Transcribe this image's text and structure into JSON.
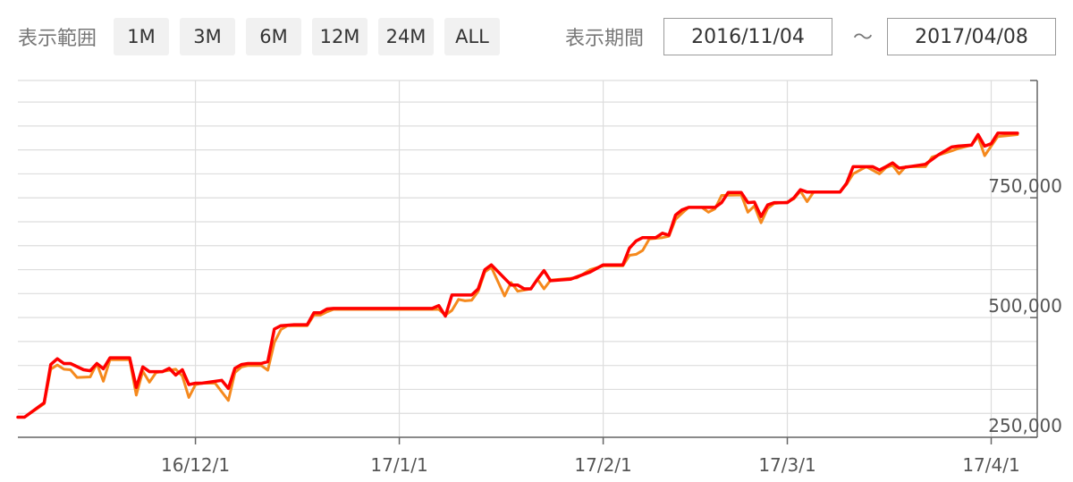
{
  "toolbar": {
    "range_label": "表示範囲",
    "range_buttons": [
      "1M",
      "3M",
      "6M",
      "12M",
      "24M",
      "ALL"
    ],
    "period_label": "表示期間",
    "start_date": "2016/11/04",
    "tilde": "〜",
    "end_date": "2017/04/08"
  },
  "colors": {
    "series_1": "#ff0000",
    "series_2": "#f5891d",
    "grid": "#dddddd",
    "axis": "#666666"
  },
  "chart_data": {
    "type": "line",
    "y_axis_position": "right",
    "y_ticks": [
      250000,
      500000,
      750000
    ],
    "y_tick_labels": [
      "250,000",
      "500,000",
      "750,000"
    ],
    "ylim": [
      250000,
      995000
    ],
    "x_ticks": [
      "2016-12-01",
      "2017-01-01",
      "2017-02-01",
      "2017-03-01",
      "2017-04-01"
    ],
    "x_tick_labels": [
      "16/12/1",
      "17/1/1",
      "17/2/1",
      "17/3/1",
      "17/4/1"
    ],
    "xlim": [
      "2016-11-04",
      "2017-04-08"
    ],
    "grid": true,
    "series": [
      {
        "values": [
          [
            "2016-11-04",
            292000
          ],
          [
            "2016-11-05",
            292000
          ],
          [
            "2016-11-08",
            322000
          ],
          [
            "2016-11-09",
            402000
          ],
          [
            "2016-11-10",
            414000
          ],
          [
            "2016-11-11",
            404000
          ],
          [
            "2016-11-12",
            404000
          ],
          [
            "2016-11-14",
            391000
          ],
          [
            "2016-11-15",
            389000
          ],
          [
            "2016-11-16",
            404000
          ],
          [
            "2016-11-17",
            393000
          ],
          [
            "2016-11-18",
            416000
          ],
          [
            "2016-11-21",
            416000
          ],
          [
            "2016-11-22",
            354000
          ],
          [
            "2016-11-23",
            397000
          ],
          [
            "2016-11-24",
            387000
          ],
          [
            "2016-11-26",
            387000
          ],
          [
            "2016-11-27",
            394000
          ],
          [
            "2016-11-28",
            380000
          ],
          [
            "2016-11-29",
            391000
          ],
          [
            "2016-11-30",
            360000
          ],
          [
            "2016-12-01",
            363000
          ],
          [
            "2016-12-02",
            363000
          ],
          [
            "2016-12-05",
            369000
          ],
          [
            "2016-12-06",
            352000
          ],
          [
            "2016-12-07",
            394000
          ],
          [
            "2016-12-08",
            402000
          ],
          [
            "2016-12-09",
            404000
          ],
          [
            "2016-12-11",
            404000
          ],
          [
            "2016-12-12",
            408000
          ],
          [
            "2016-12-13",
            476000
          ],
          [
            "2016-12-14",
            483000
          ],
          [
            "2016-12-16",
            485000
          ],
          [
            "2016-12-18",
            485000
          ],
          [
            "2016-12-19",
            510000
          ],
          [
            "2016-12-20",
            510000
          ],
          [
            "2016-12-21",
            518000
          ],
          [
            "2016-12-22",
            519000
          ],
          [
            "2017-01-06",
            519000
          ],
          [
            "2017-01-07",
            525000
          ],
          [
            "2017-01-08",
            503000
          ],
          [
            "2017-01-09",
            547000
          ],
          [
            "2017-01-12",
            547000
          ],
          [
            "2017-01-13",
            560000
          ],
          [
            "2017-01-14",
            600000
          ],
          [
            "2017-01-15",
            610000
          ],
          [
            "2017-01-18",
            568000
          ],
          [
            "2017-01-19",
            568000
          ],
          [
            "2017-01-20",
            560000
          ],
          [
            "2017-01-21",
            560000
          ],
          [
            "2017-01-22",
            580000
          ],
          [
            "2017-01-23",
            598000
          ],
          [
            "2017-01-24",
            577000
          ],
          [
            "2017-01-27",
            580000
          ],
          [
            "2017-01-30",
            595000
          ],
          [
            "2017-02-01",
            610000
          ],
          [
            "2017-02-04",
            610000
          ],
          [
            "2017-02-05",
            645000
          ],
          [
            "2017-02-06",
            660000
          ],
          [
            "2017-02-07",
            667000
          ],
          [
            "2017-02-09",
            667000
          ],
          [
            "2017-02-10",
            676000
          ],
          [
            "2017-02-11",
            672000
          ],
          [
            "2017-02-12",
            714000
          ],
          [
            "2017-02-13",
            725000
          ],
          [
            "2017-02-14",
            730000
          ],
          [
            "2017-02-18",
            730000
          ],
          [
            "2017-02-19",
            740000
          ],
          [
            "2017-02-20",
            761000
          ],
          [
            "2017-02-22",
            761000
          ],
          [
            "2017-02-23",
            740000
          ],
          [
            "2017-02-24",
            741000
          ],
          [
            "2017-02-25",
            711000
          ],
          [
            "2017-02-26",
            735000
          ],
          [
            "2017-02-27",
            740000
          ],
          [
            "2017-03-01",
            740000
          ],
          [
            "2017-03-02",
            750000
          ],
          [
            "2017-03-03",
            767000
          ],
          [
            "2017-03-04",
            762000
          ],
          [
            "2017-03-09",
            762000
          ],
          [
            "2017-03-10",
            780000
          ],
          [
            "2017-03-11",
            815000
          ],
          [
            "2017-03-14",
            815000
          ],
          [
            "2017-03-15",
            808000
          ],
          [
            "2017-03-16",
            815000
          ],
          [
            "2017-03-17",
            823000
          ],
          [
            "2017-03-18",
            812000
          ],
          [
            "2017-03-21",
            818000
          ],
          [
            "2017-03-22",
            820000
          ],
          [
            "2017-03-24",
            840000
          ],
          [
            "2017-03-26",
            856000
          ],
          [
            "2017-03-27",
            858000
          ],
          [
            "2017-03-29",
            860000
          ],
          [
            "2017-03-30",
            882000
          ],
          [
            "2017-03-31",
            858000
          ],
          [
            "2017-04-01",
            863000
          ],
          [
            "2017-04-02",
            885000
          ],
          [
            "2017-04-05",
            885000
          ]
        ]
      },
      {
        "values": [
          [
            "2016-11-04",
            292000
          ],
          [
            "2016-11-05",
            292000
          ],
          [
            "2016-11-08",
            320000
          ],
          [
            "2016-11-09",
            392000
          ],
          [
            "2016-11-10",
            401000
          ],
          [
            "2016-11-11",
            392000
          ],
          [
            "2016-11-12",
            391000
          ],
          [
            "2016-11-13",
            375000
          ],
          [
            "2016-11-15",
            376000
          ],
          [
            "2016-11-16",
            404000
          ],
          [
            "2016-11-17",
            367000
          ],
          [
            "2016-11-18",
            412000
          ],
          [
            "2016-11-21",
            412000
          ],
          [
            "2016-11-22",
            338000
          ],
          [
            "2016-11-23",
            388000
          ],
          [
            "2016-11-24",
            365000
          ],
          [
            "2016-11-25",
            385000
          ],
          [
            "2016-11-28",
            392000
          ],
          [
            "2016-11-29",
            378000
          ],
          [
            "2016-11-30",
            333000
          ],
          [
            "2016-12-01",
            360000
          ],
          [
            "2016-12-02",
            363000
          ],
          [
            "2016-12-04",
            363000
          ],
          [
            "2016-12-06",
            327000
          ],
          [
            "2016-12-07",
            385000
          ],
          [
            "2016-12-08",
            397000
          ],
          [
            "2016-12-09",
            400000
          ],
          [
            "2016-12-11",
            400000
          ],
          [
            "2016-12-12",
            390000
          ],
          [
            "2016-12-13",
            448000
          ],
          [
            "2016-12-14",
            475000
          ],
          [
            "2016-12-15",
            483000
          ],
          [
            "2016-12-18",
            483000
          ],
          [
            "2016-12-19",
            505000
          ],
          [
            "2016-12-20",
            505000
          ],
          [
            "2016-12-21",
            512000
          ],
          [
            "2016-12-22",
            517000
          ],
          [
            "2017-01-06",
            517000
          ],
          [
            "2017-01-07",
            517000
          ],
          [
            "2017-01-08",
            505000
          ],
          [
            "2017-01-09",
            515000
          ],
          [
            "2017-01-10",
            538000
          ],
          [
            "2017-01-11",
            535000
          ],
          [
            "2017-01-12",
            536000
          ],
          [
            "2017-01-13",
            555000
          ],
          [
            "2017-01-14",
            595000
          ],
          [
            "2017-01-15",
            605000
          ],
          [
            "2017-01-17",
            545000
          ],
          [
            "2017-01-18",
            573000
          ],
          [
            "2017-01-19",
            555000
          ],
          [
            "2017-01-21",
            560000
          ],
          [
            "2017-01-22",
            580000
          ],
          [
            "2017-01-23",
            560000
          ],
          [
            "2017-01-24",
            578000
          ],
          [
            "2017-01-27",
            582000
          ],
          [
            "2017-01-28",
            583000
          ],
          [
            "2017-01-30",
            600000
          ],
          [
            "2017-02-01",
            608000
          ],
          [
            "2017-02-04",
            608000
          ],
          [
            "2017-02-05",
            630000
          ],
          [
            "2017-02-06",
            632000
          ],
          [
            "2017-02-07",
            640000
          ],
          [
            "2017-02-08",
            664000
          ],
          [
            "2017-02-10",
            667000
          ],
          [
            "2017-02-11",
            670000
          ],
          [
            "2017-02-12",
            705000
          ],
          [
            "2017-02-13",
            718000
          ],
          [
            "2017-02-14",
            730000
          ],
          [
            "2017-02-16",
            730000
          ],
          [
            "2017-02-17",
            720000
          ],
          [
            "2017-02-18",
            727000
          ],
          [
            "2017-02-19",
            755000
          ],
          [
            "2017-02-22",
            756000
          ],
          [
            "2017-02-23",
            720000
          ],
          [
            "2017-02-24",
            733000
          ],
          [
            "2017-02-25",
            698000
          ],
          [
            "2017-02-26",
            728000
          ],
          [
            "2017-02-27",
            738000
          ],
          [
            "2017-03-01",
            741000
          ],
          [
            "2017-03-02",
            748000
          ],
          [
            "2017-03-03",
            764000
          ],
          [
            "2017-03-04",
            742000
          ],
          [
            "2017-03-05",
            762000
          ],
          [
            "2017-03-09",
            762000
          ],
          [
            "2017-03-10",
            778000
          ],
          [
            "2017-03-11",
            800000
          ],
          [
            "2017-03-13",
            815000
          ],
          [
            "2017-03-15",
            800000
          ],
          [
            "2017-03-16",
            813000
          ],
          [
            "2017-03-17",
            818000
          ],
          [
            "2017-03-18",
            800000
          ],
          [
            "2017-03-19",
            815000
          ],
          [
            "2017-03-22",
            815000
          ],
          [
            "2017-03-23",
            835000
          ],
          [
            "2017-03-26",
            848000
          ],
          [
            "2017-03-27",
            853000
          ],
          [
            "2017-03-29",
            860000
          ],
          [
            "2017-03-30",
            878000
          ],
          [
            "2017-03-31",
            838000
          ],
          [
            "2017-04-01",
            858000
          ],
          [
            "2017-04-02",
            878000
          ],
          [
            "2017-04-05",
            882000
          ]
        ]
      }
    ]
  }
}
